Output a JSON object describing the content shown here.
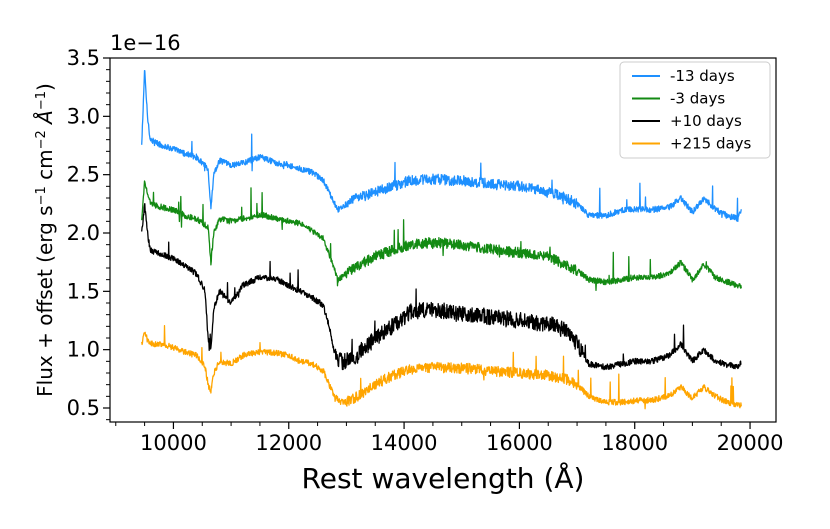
{
  "chart_data": {
    "type": "line",
    "title": "",
    "xlabel": "Rest wavelength (Å)",
    "ylabel_parts": {
      "prefix": "Flux + offset (erg s",
      "exp1": "−1",
      "mid1": " cm",
      "exp2": "−2",
      "mid2": " Å",
      "exp3": "−1",
      "suffix": ")"
    },
    "offset_text": "1e−16",
    "xlim": [
      8900,
      20450
    ],
    "ylim": [
      0.38,
      3.5
    ],
    "xticks": [
      10000,
      12000,
      14000,
      16000,
      18000,
      20000
    ],
    "xtick_labels": [
      "10000",
      "12000",
      "14000",
      "16000",
      "18000",
      "20000"
    ],
    "yticks": [
      0.5,
      1.0,
      1.5,
      2.0,
      2.5,
      3.0,
      3.5
    ],
    "ytick_labels": [
      "0.5",
      "1.0",
      "1.5",
      "2.0",
      "2.5",
      "3.0",
      "3.5"
    ],
    "legend_position": "top-right",
    "series": [
      {
        "name": "-13 days",
        "color": "#1e90ff",
        "x": [
          9450,
          9500,
          9550,
          9600,
          9800,
          10000,
          10200,
          10400,
          10600,
          10650,
          10700,
          10800,
          11000,
          11200,
          11500,
          11800,
          12000,
          12200,
          12400,
          12600,
          12750,
          12850,
          13000,
          13200,
          13500,
          13800,
          14100,
          14500,
          15000,
          15500,
          16000,
          16500,
          16800,
          17000,
          17200,
          17500,
          17800,
          18000,
          18300,
          18600,
          18800,
          19000,
          19200,
          19400,
          19600,
          19800,
          19850
        ],
        "y": [
          2.75,
          3.4,
          3.0,
          2.8,
          2.75,
          2.72,
          2.68,
          2.65,
          2.55,
          2.2,
          2.5,
          2.62,
          2.58,
          2.6,
          2.65,
          2.6,
          2.58,
          2.55,
          2.52,
          2.45,
          2.3,
          2.2,
          2.25,
          2.3,
          2.35,
          2.4,
          2.45,
          2.46,
          2.45,
          2.42,
          2.4,
          2.35,
          2.3,
          2.25,
          2.15,
          2.15,
          2.2,
          2.2,
          2.2,
          2.22,
          2.3,
          2.18,
          2.3,
          2.2,
          2.15,
          2.12,
          2.22
        ]
      },
      {
        "name": "-3 days",
        "color": "#138a13",
        "x": [
          9450,
          9500,
          9550,
          9600,
          9800,
          10000,
          10200,
          10400,
          10600,
          10650,
          10700,
          10800,
          11000,
          11200,
          11500,
          11800,
          12000,
          12200,
          12400,
          12600,
          12750,
          12850,
          13000,
          13200,
          13500,
          13800,
          14100,
          14500,
          15000,
          15500,
          16000,
          16500,
          16800,
          17000,
          17200,
          17500,
          17800,
          18000,
          18300,
          18600,
          18800,
          19000,
          19200,
          19400,
          19600,
          19800,
          19850
        ],
        "y": [
          2.1,
          2.45,
          2.35,
          2.25,
          2.22,
          2.2,
          2.15,
          2.12,
          2.05,
          1.75,
          2.0,
          2.12,
          2.1,
          2.12,
          2.16,
          2.12,
          2.1,
          2.08,
          2.02,
          1.95,
          1.75,
          1.6,
          1.65,
          1.72,
          1.8,
          1.85,
          1.9,
          1.92,
          1.9,
          1.86,
          1.83,
          1.8,
          1.72,
          1.68,
          1.6,
          1.58,
          1.6,
          1.62,
          1.62,
          1.65,
          1.75,
          1.6,
          1.73,
          1.62,
          1.58,
          1.55,
          1.55
        ]
      },
      {
        "name": "+10 days",
        "color": "#000000",
        "x": [
          9450,
          9500,
          9550,
          9600,
          9800,
          10000,
          10200,
          10400,
          10550,
          10600,
          10650,
          10700,
          10800,
          11000,
          11200,
          11500,
          11800,
          12000,
          12200,
          12400,
          12600,
          12700,
          12800,
          12900,
          13000,
          13200,
          13500,
          13800,
          14100,
          14500,
          15000,
          15500,
          16000,
          16500,
          16800,
          17000,
          17200,
          17500,
          17800,
          18000,
          18300,
          18600,
          18800,
          19000,
          19200,
          19400,
          19600,
          19800,
          19850
        ],
        "y": [
          2.0,
          2.25,
          2.0,
          1.85,
          1.82,
          1.78,
          1.72,
          1.65,
          1.5,
          1.1,
          1.0,
          1.35,
          1.5,
          1.4,
          1.55,
          1.62,
          1.6,
          1.55,
          1.5,
          1.45,
          1.38,
          1.2,
          0.95,
          0.9,
          0.9,
          0.95,
          1.1,
          1.2,
          1.32,
          1.35,
          1.3,
          1.28,
          1.25,
          1.22,
          1.18,
          1.05,
          0.88,
          0.85,
          0.88,
          0.9,
          0.9,
          0.95,
          1.05,
          0.9,
          1.0,
          0.9,
          0.87,
          0.85,
          0.9
        ]
      },
      {
        "name": "+215 days",
        "color": "#ffa500",
        "x": [
          9450,
          9500,
          9550,
          9600,
          9800,
          10000,
          10200,
          10400,
          10550,
          10600,
          10650,
          10700,
          10800,
          11000,
          11200,
          11500,
          11800,
          12000,
          12200,
          12400,
          12600,
          12700,
          12800,
          12900,
          13000,
          13200,
          13500,
          13800,
          14100,
          14500,
          15000,
          15500,
          16000,
          16500,
          16800,
          17000,
          17200,
          17500,
          17800,
          18000,
          18300,
          18600,
          18800,
          19000,
          19200,
          19400,
          19600,
          19800,
          19850
        ],
        "y": [
          1.05,
          1.15,
          1.08,
          1.05,
          1.05,
          1.02,
          0.98,
          0.95,
          0.85,
          0.7,
          0.65,
          0.8,
          0.9,
          0.88,
          0.95,
          0.98,
          0.97,
          0.95,
          0.9,
          0.88,
          0.82,
          0.7,
          0.6,
          0.55,
          0.55,
          0.6,
          0.7,
          0.78,
          0.83,
          0.85,
          0.84,
          0.82,
          0.8,
          0.78,
          0.75,
          0.7,
          0.6,
          0.55,
          0.55,
          0.56,
          0.57,
          0.6,
          0.68,
          0.58,
          0.68,
          0.6,
          0.55,
          0.52,
          0.52
        ]
      }
    ]
  }
}
